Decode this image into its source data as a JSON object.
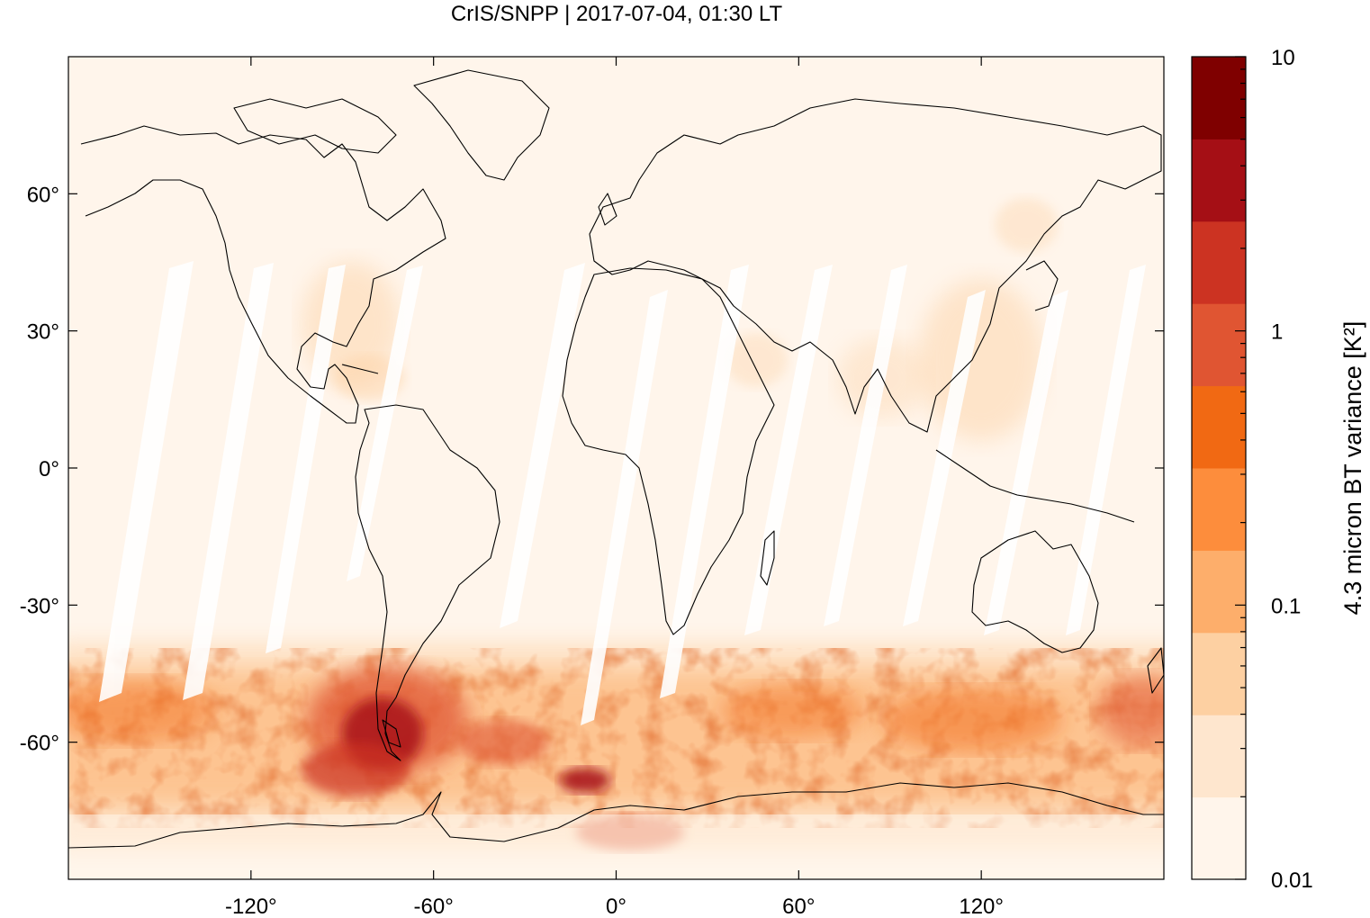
{
  "title": "CrIS/SNPP | 2017-07-04, 01:30 LT",
  "map": {
    "projection": "equirectangular",
    "lon_range": [
      -180,
      180
    ],
    "lat_range": [
      -90,
      90
    ],
    "x_ticks": [
      {
        "value": -120,
        "label": "-120°"
      },
      {
        "value": -60,
        "label": "-60°"
      },
      {
        "value": 0,
        "label": "0°"
      },
      {
        "value": 60,
        "label": "60°"
      },
      {
        "value": 120,
        "label": "120°"
      }
    ],
    "y_ticks": [
      {
        "value": 60,
        "label": "60°"
      },
      {
        "value": 30,
        "label": "30°"
      },
      {
        "value": 0,
        "label": "0°"
      },
      {
        "value": -30,
        "label": "-30°"
      },
      {
        "value": -60,
        "label": "-60°"
      }
    ],
    "background_color": "#fff5eb",
    "coastline_color": "#000000"
  },
  "colorbar": {
    "label": "4.3 micron BT variance [K²]",
    "scale": "log",
    "range": [
      0.01,
      10
    ],
    "tick_labels": [
      {
        "value": 10,
        "label": "10"
      },
      {
        "value": 1,
        "label": "1"
      },
      {
        "value": 0.1,
        "label": "0.1"
      },
      {
        "value": 0.01,
        "label": "0.01"
      }
    ],
    "colors": [
      "#fff5eb",
      "#fee6ce",
      "#fdd0a2",
      "#fdae6b",
      "#fd8d3c",
      "#f16913",
      "#e05532",
      "#cc3322",
      "#a50f15",
      "#7f0000"
    ]
  },
  "features": [
    {
      "name": "Southern Hemisphere gravity-wave belt",
      "lat_range": [
        -75,
        -35
      ],
      "level": "high"
    },
    {
      "name": "Southern Andes / Drake Passage hotspot",
      "lon": -70,
      "lat": -55,
      "level": "very high"
    },
    {
      "name": "Antarctic Peninsula hotspot",
      "lon": -15,
      "lat": -68,
      "level": "very high"
    },
    {
      "name": "Weddell Sea region",
      "lon": 10,
      "lat": -80,
      "level": "high"
    },
    {
      "name": "Northern summer convection, North America",
      "lon": -80,
      "lat": 35,
      "level": "low"
    },
    {
      "name": "Northern summer convection, East Asia",
      "lon": 120,
      "lat": 25,
      "level": "low"
    }
  ]
}
